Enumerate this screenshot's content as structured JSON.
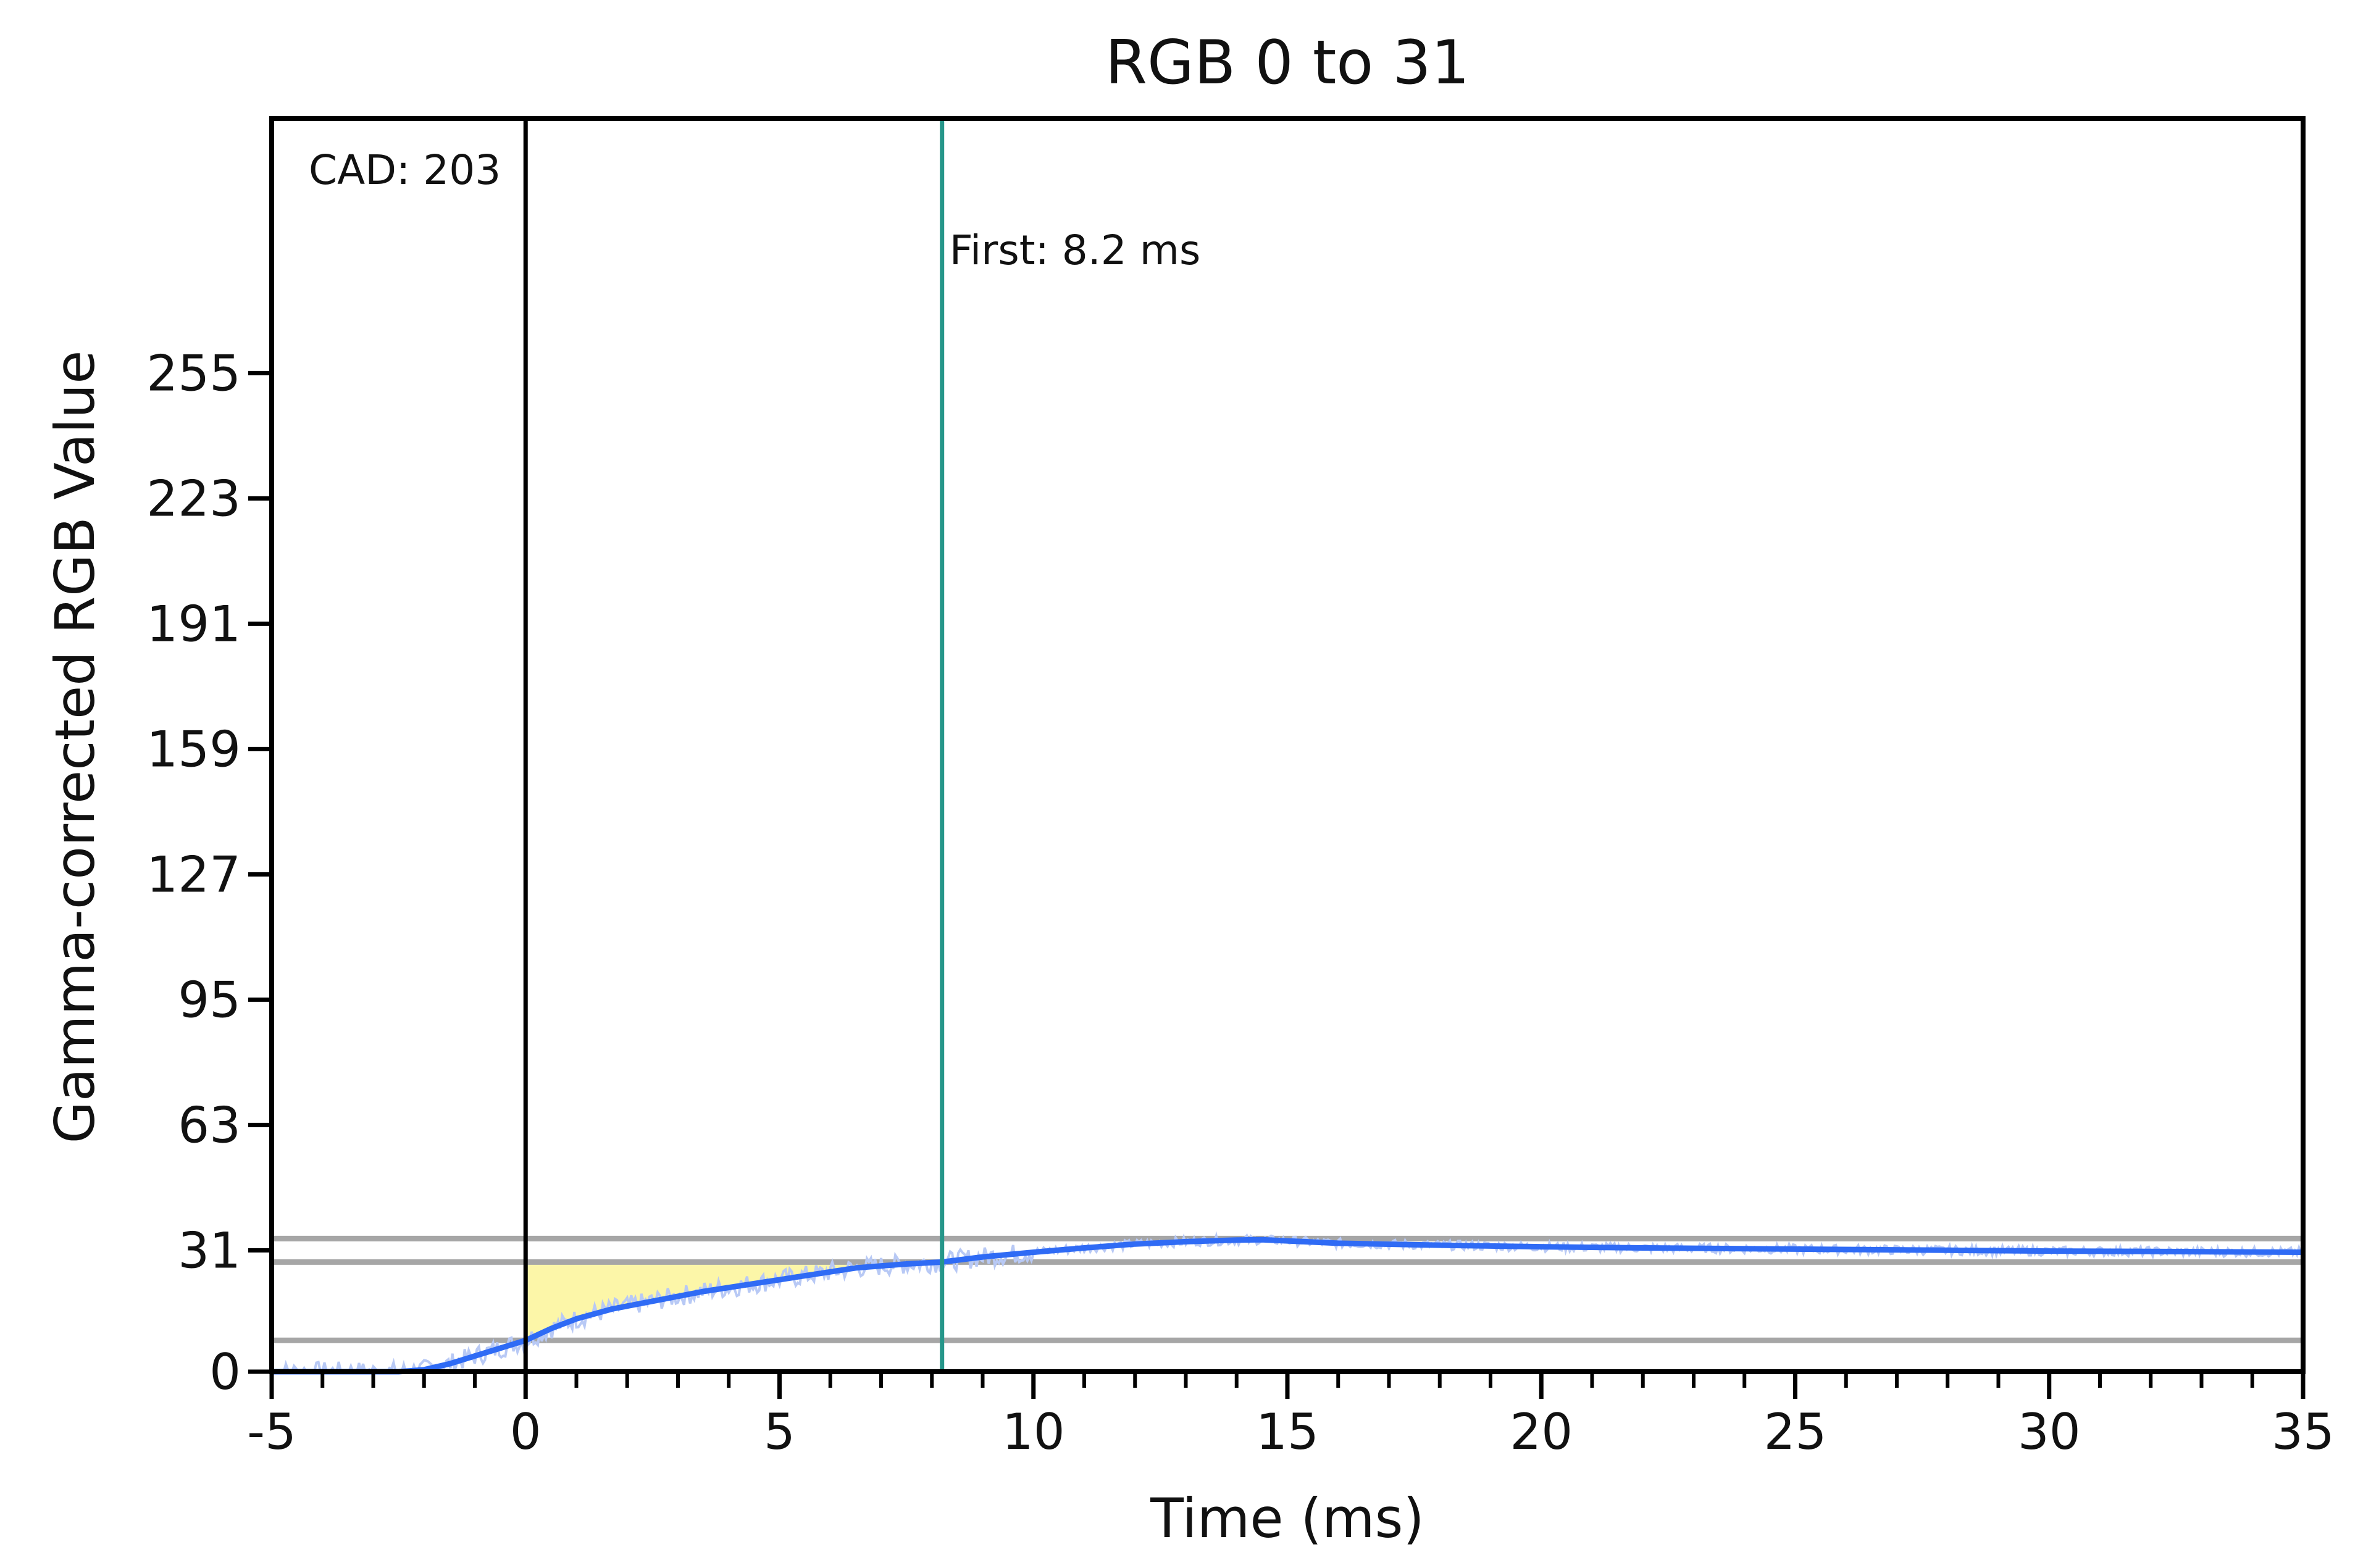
{
  "chart_data": {
    "type": "line",
    "title": "RGB 0 to 31",
    "xlabel": "Time (ms)",
    "ylabel": "Gamma-corrected RGB Value",
    "xlim": [
      -5,
      35
    ],
    "ylim": [
      0,
      320
    ],
    "x_ticks": [
      -5,
      0,
      5,
      10,
      15,
      20,
      25,
      30,
      35
    ],
    "x_tick_labels": [
      "-5",
      "0",
      "5",
      "10",
      "15",
      "20",
      "25",
      "30",
      "35"
    ],
    "x_minor_step": 1,
    "y_ticks": [
      0,
      31,
      63,
      95,
      127,
      159,
      191,
      223,
      255
    ],
    "y_tick_labels": [
      "0",
      "31",
      "63",
      "95",
      "127",
      "159",
      "191",
      "223",
      "255"
    ],
    "grid": false,
    "colors": {
      "line": "#2f6bf5",
      "raw": "#b8c9f5",
      "fill": "#fcf6a8",
      "threshold": "#a6a6a6",
      "start_marker": "#000000",
      "first_marker": "#26968a"
    },
    "threshold_lines": [
      34,
      28,
      8
    ],
    "shaded_region": {
      "x_start": 0,
      "x_end": 8.2,
      "y_top": 28
    },
    "markers": [
      {
        "name": "start",
        "x": 0,
        "label": "CAD: 203"
      },
      {
        "name": "first",
        "x": 8.2,
        "label": "First: 8.2 ms"
      }
    ],
    "series": [
      {
        "x": [
          -5,
          -4,
          -3,
          -2.5,
          -2,
          -1.5,
          -1,
          -0.5,
          0,
          0.5,
          1,
          1.7,
          2.5,
          3.5,
          4.5,
          5.5,
          6.5,
          7.5,
          8.2,
          9,
          10,
          11,
          12,
          13,
          14,
          14.5,
          15,
          16,
          18,
          20,
          22,
          25,
          28,
          30,
          32,
          35
        ],
        "y": [
          0,
          0,
          0,
          0,
          0.5,
          2,
          4,
          6,
          8,
          11,
          13.5,
          16,
          18,
          20.5,
          22.5,
          24.5,
          26.5,
          27.5,
          28,
          29.3,
          30.5,
          31.6,
          32.6,
          33.2,
          33.6,
          33.7,
          33.4,
          32.8,
          32.3,
          31.9,
          31.6,
          31.3,
          31.0,
          30.8,
          30.7,
          30.5
        ]
      }
    ]
  }
}
